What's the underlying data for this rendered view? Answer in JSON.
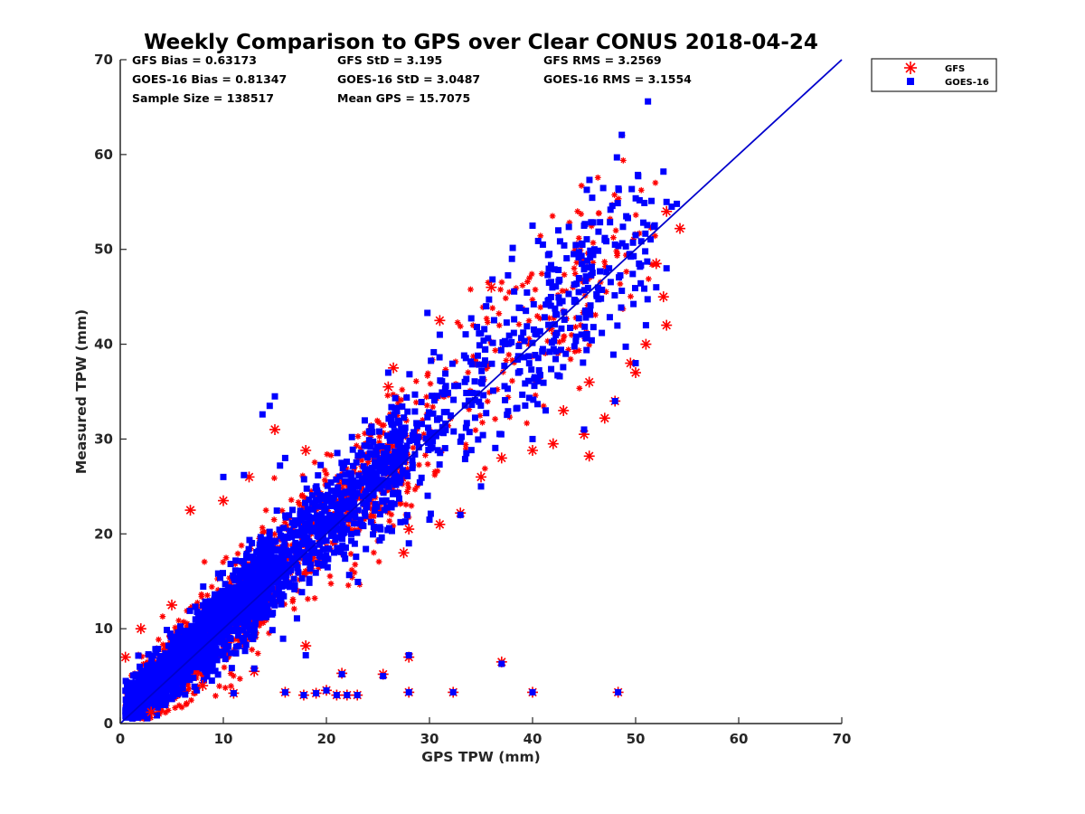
{
  "chart_data": {
    "type": "scatter",
    "title": "Weekly Comparison to GPS over Clear CONUS 2018-04-24",
    "xlabel": "GPS TPW (mm)",
    "ylabel": "Measured TPW (mm)",
    "xlim": [
      0,
      70
    ],
    "ylim": [
      0,
      70
    ],
    "xticks": [
      "0",
      "10",
      "20",
      "30",
      "40",
      "50",
      "60",
      "70"
    ],
    "yticks": [
      "0",
      "10",
      "20",
      "30",
      "40",
      "50",
      "60",
      "70"
    ],
    "grid": false,
    "legend_position": "outside-top-right",
    "stats": [
      [
        "GFS Bias = 0.63173",
        "GFS StD = 3.195",
        "GFS RMS = 3.2569"
      ],
      [
        "GOES-16 Bias = 0.81347",
        "GOES-16 StD = 3.0487",
        "GOES-16 RMS = 3.1554"
      ],
      [
        "Sample Size = 138517",
        "Mean GPS = 15.7075",
        ""
      ]
    ],
    "series": [
      {
        "name": "GFS",
        "marker": "asterisk",
        "color": "#ff0000",
        "outliers": [
          [
            15,
            31
          ],
          [
            18,
            28.8
          ],
          [
            26,
            35.5
          ],
          [
            26.5,
            37.5
          ],
          [
            31,
            42.5
          ],
          [
            36,
            46
          ],
          [
            6.8,
            22.5
          ],
          [
            10,
            23.5
          ],
          [
            12.5,
            26
          ],
          [
            27.5,
            18
          ],
          [
            28,
            20.5
          ],
          [
            31,
            21
          ],
          [
            33,
            22.2
          ],
          [
            35,
            26
          ],
          [
            37,
            28
          ],
          [
            40,
            28.8
          ],
          [
            42,
            29.5
          ],
          [
            45.5,
            28.2
          ],
          [
            47,
            32.2
          ],
          [
            43,
            33
          ],
          [
            45,
            30.5
          ],
          [
            48,
            34
          ],
          [
            50,
            37
          ],
          [
            51,
            40
          ],
          [
            52.7,
            45
          ],
          [
            53,
            42
          ],
          [
            53,
            54
          ],
          [
            54.3,
            52.2
          ],
          [
            52,
            48.5
          ],
          [
            49.5,
            38
          ],
          [
            45.5,
            36
          ],
          [
            18,
            8.2
          ],
          [
            28,
            7
          ],
          [
            37,
            6.5
          ],
          [
            25.5,
            5.2
          ],
          [
            21.5,
            5.3
          ],
          [
            13,
            5.5
          ],
          [
            11,
            3.2
          ],
          [
            16,
            3.3
          ],
          [
            17.8,
            3.0
          ],
          [
            19,
            3.2
          ],
          [
            20,
            3.5
          ],
          [
            21,
            3.0
          ],
          [
            22,
            3.0
          ],
          [
            23,
            3.0
          ],
          [
            28,
            3.3
          ],
          [
            32.3,
            3.3
          ],
          [
            40,
            3.3
          ],
          [
            48.3,
            3.3
          ],
          [
            5,
            12.5
          ],
          [
            2,
            10
          ],
          [
            0.5,
            7
          ],
          [
            8,
            4
          ],
          [
            3,
            1.2
          ]
        ]
      },
      {
        "name": "GOES-16",
        "marker": "square",
        "color": "#0000ff",
        "outliers": [
          [
            14.5,
            33.5
          ],
          [
            15,
            34.5
          ],
          [
            13.8,
            32.6
          ],
          [
            26,
            37
          ],
          [
            29.8,
            43.3
          ],
          [
            35.5,
            44
          ],
          [
            40,
            52.5
          ],
          [
            42.5,
            52
          ],
          [
            45,
            52.5
          ],
          [
            47,
            51
          ],
          [
            50,
            51.5
          ],
          [
            52.7,
            58.2
          ],
          [
            53,
            55
          ],
          [
            53.5,
            54.5
          ],
          [
            54,
            54.8
          ],
          [
            41,
            50.5
          ],
          [
            38,
            49
          ],
          [
            31,
            41
          ],
          [
            10,
            26
          ],
          [
            12,
            26.2
          ],
          [
            15.5,
            27.2
          ],
          [
            16,
            28
          ],
          [
            28,
            19
          ],
          [
            30,
            21.5
          ],
          [
            33,
            22
          ],
          [
            35,
            25
          ],
          [
            40,
            30
          ],
          [
            45,
            31
          ],
          [
            48,
            34
          ],
          [
            50,
            38
          ],
          [
            51,
            42
          ],
          [
            52,
            46
          ],
          [
            53,
            48
          ],
          [
            18,
            7.2
          ],
          [
            28,
            7.2
          ],
          [
            37,
            6.3
          ],
          [
            25.5,
            5
          ],
          [
            21.5,
            5.2
          ],
          [
            13,
            5.8
          ],
          [
            11,
            3.2
          ],
          [
            16,
            3.3
          ],
          [
            17.8,
            3.0
          ],
          [
            19,
            3.2
          ],
          [
            20,
            3.5
          ],
          [
            21,
            3.0
          ],
          [
            22,
            3.0
          ],
          [
            23,
            3.0
          ],
          [
            28,
            3.3
          ],
          [
            32.3,
            3.3
          ],
          [
            40,
            3.3
          ],
          [
            48.3,
            3.3
          ],
          [
            44,
            49.5
          ],
          [
            46,
            50
          ],
          [
            48,
            50.5
          ]
        ]
      }
    ],
    "reference_line": {
      "from": [
        0,
        0
      ],
      "to": [
        70,
        70
      ],
      "color": "#0000cc"
    }
  }
}
